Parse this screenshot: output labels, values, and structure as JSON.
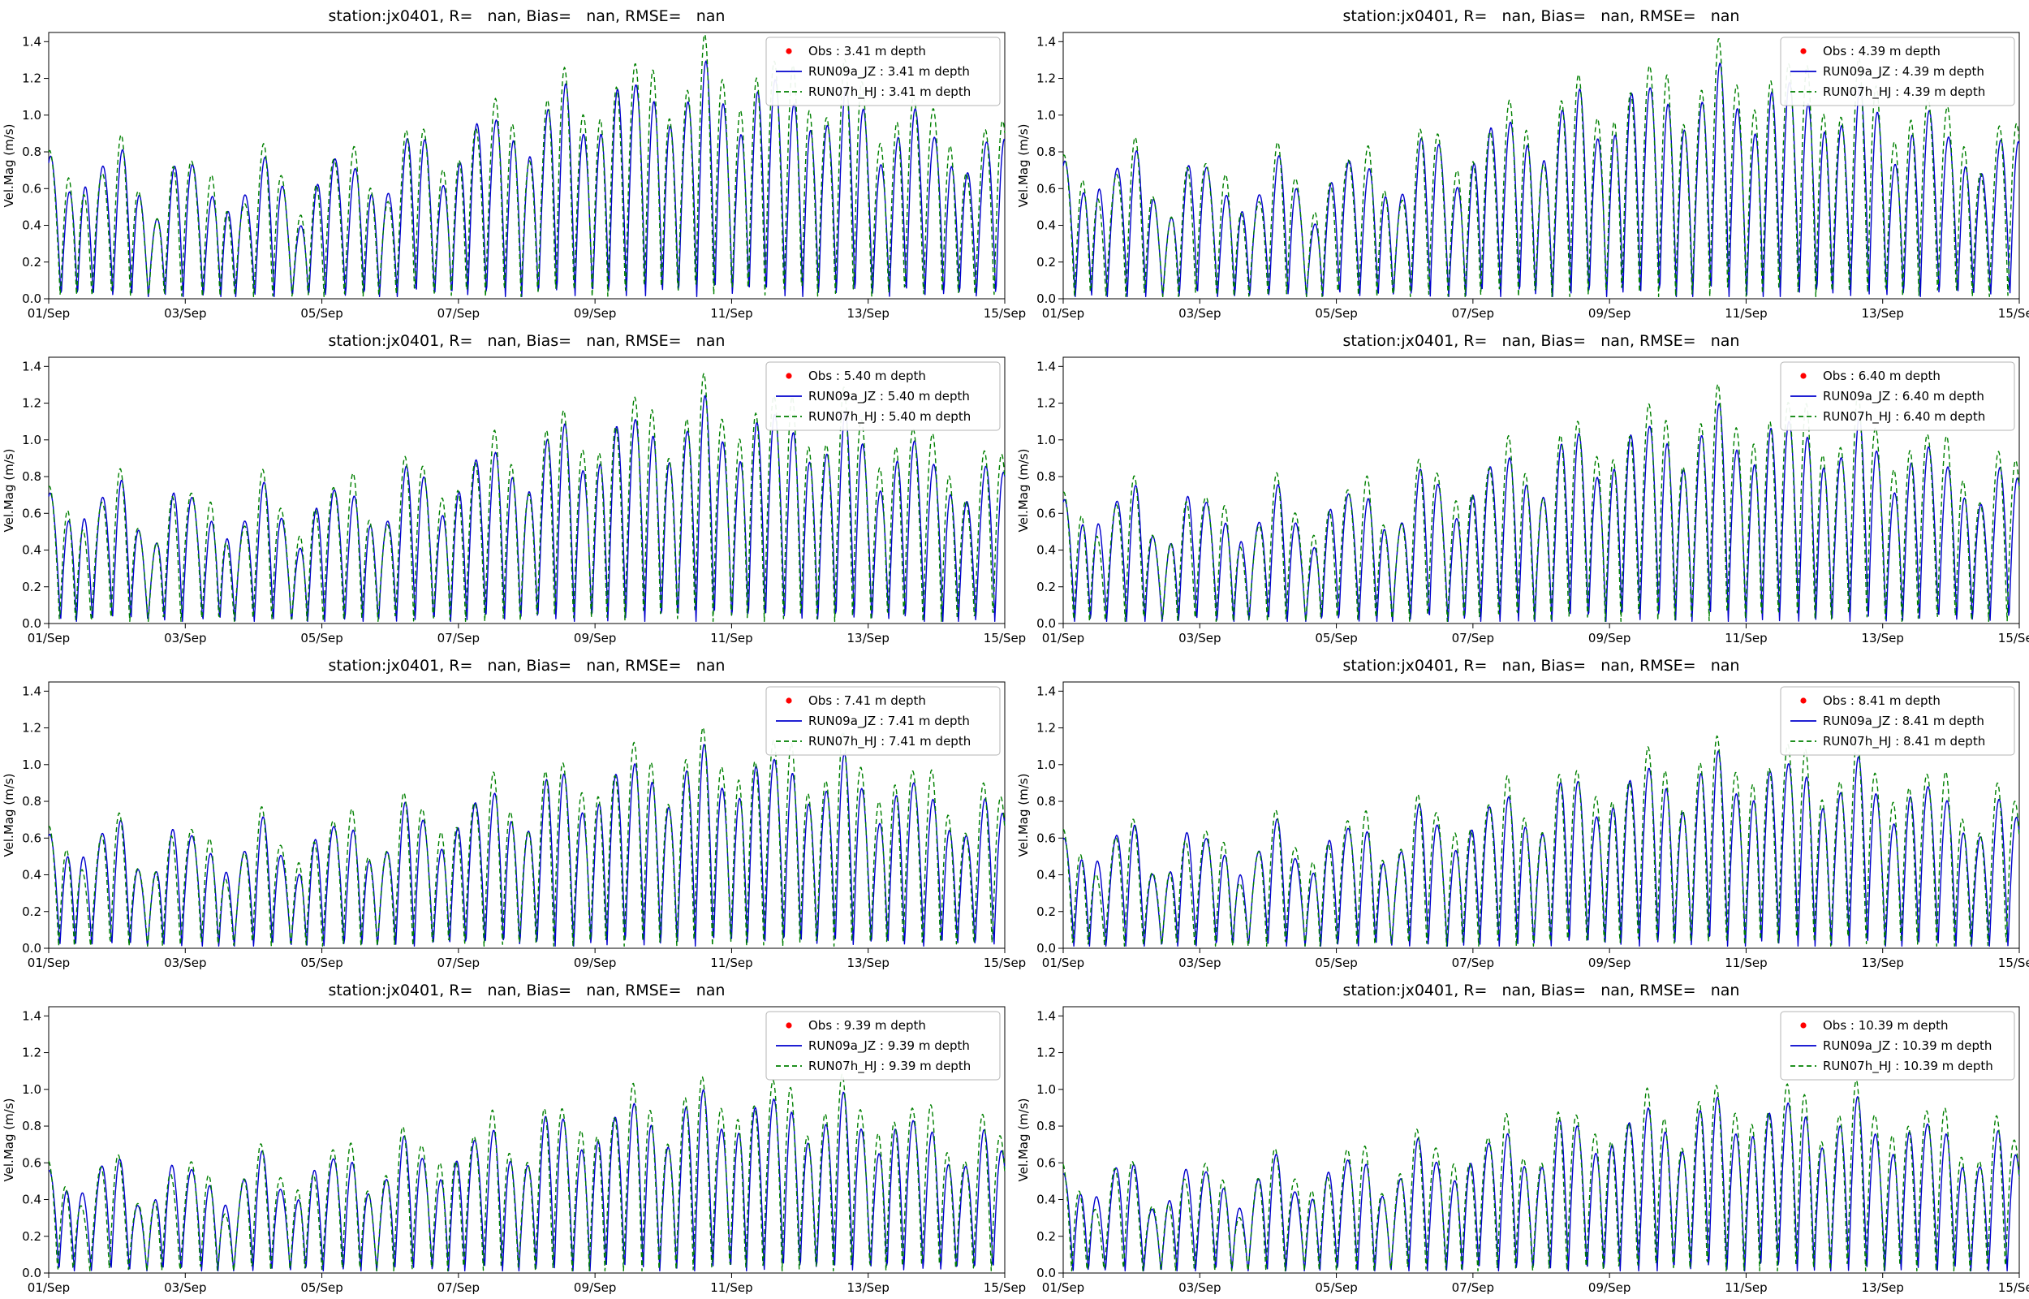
{
  "figure": {
    "background": "#ffffff",
    "rows": 4,
    "cols": 2
  },
  "colors": {
    "obs": "#ff0000",
    "run09a": "#0000cd",
    "run07h": "#008000",
    "axis": "#000000"
  },
  "chart_data": [
    {
      "type": "line",
      "title": "station:jx0401, R=   nan, Bias=   nan, RMSE=   nan",
      "ylabel": "Vel.Mag (m/s)",
      "ylim": [
        0,
        1.45
      ],
      "x_hours": [
        0,
        336
      ],
      "grid": false,
      "legend_position": "upper right",
      "yticks": [
        0.0,
        0.2,
        0.4,
        0.6,
        0.8,
        1.0,
        1.2,
        1.4
      ],
      "ytick_labels": [
        "0.0",
        "0.2",
        "0.4",
        "0.6",
        "0.8",
        "1.0",
        "1.2",
        "1.4"
      ],
      "xticks_hours": [
        0,
        48,
        96,
        144,
        192,
        240,
        288,
        336
      ],
      "xtick_labels": [
        "01/Sep",
        "03/Sep",
        "05/Sep",
        "07/Sep",
        "09/Sep",
        "11/Sep",
        "13/Sep",
        "15/Sep"
      ],
      "legend": [
        {
          "label": "Obs : 3.41 m depth",
          "marker": "dot",
          "color": "#ff0000"
        },
        {
          "label": "RUN09a_JZ : 3.41 m depth",
          "marker": "solid-line",
          "color": "#0000cd"
        },
        {
          "label": "RUN07h_HJ : 3.41 m depth",
          "marker": "dashed-line",
          "color": "#008000"
        }
      ],
      "series": [
        {
          "name": "RUN09a_JZ : 3.41 m depth",
          "color": "#0000cd",
          "style": "solid",
          "synthesis": {
            "m2": 0.8,
            "s2": 0.24,
            "k1": 0.16,
            "noise": 0.1,
            "phase": 1.0,
            "sp": 2.2,
            "kp": 0.5,
            "scale": 1.0
          }
        },
        {
          "name": "RUN07h_HJ : 3.41 m depth",
          "color": "#008000",
          "style": "dashed",
          "synthesis": {
            "m2": 0.85,
            "s2": 0.29,
            "k1": 0.18,
            "noise": 0.13,
            "phase": 1.18,
            "sp": 2.2,
            "kp": 0.9,
            "scale": 1.0
          }
        }
      ]
    },
    {
      "type": "line",
      "title": "station:jx0401, R=   nan, Bias=   nan, RMSE=   nan",
      "ylabel": "Vel.Mag (m/s)",
      "ylim": [
        0,
        1.45
      ],
      "x_hours": [
        0,
        336
      ],
      "grid": false,
      "legend_position": "upper right",
      "yticks": [
        0.0,
        0.2,
        0.4,
        0.6,
        0.8,
        1.0,
        1.2,
        1.4
      ],
      "ytick_labels": [
        "0.0",
        "0.2",
        "0.4",
        "0.6",
        "0.8",
        "1.0",
        "1.2",
        "1.4"
      ],
      "xticks_hours": [
        0,
        48,
        96,
        144,
        192,
        240,
        288,
        336
      ],
      "xtick_labels": [
        "01/Sep",
        "03/Sep",
        "05/Sep",
        "07/Sep",
        "09/Sep",
        "11/Sep",
        "13/Sep",
        "15/Sep"
      ],
      "legend": [
        {
          "label": "Obs : 4.39 m depth",
          "marker": "dot",
          "color": "#ff0000"
        },
        {
          "label": "RUN09a_JZ : 4.39 m depth",
          "marker": "solid-line",
          "color": "#0000cd"
        },
        {
          "label": "RUN07h_HJ : 4.39 m depth",
          "marker": "dashed-line",
          "color": "#008000"
        }
      ],
      "series": [
        {
          "name": "RUN09a_JZ : 4.39 m depth",
          "color": "#0000cd",
          "style": "solid",
          "synthesis": {
            "m2": 0.8,
            "s2": 0.24,
            "k1": 0.16,
            "noise": 0.1,
            "phase": 1.07,
            "sp": 2.2,
            "kp": 0.5,
            "scale": 0.99
          }
        },
        {
          "name": "RUN07h_HJ : 4.39 m depth",
          "color": "#008000",
          "style": "dashed",
          "synthesis": {
            "m2": 0.85,
            "s2": 0.29,
            "k1": 0.18,
            "noise": 0.13,
            "phase": 1.25,
            "sp": 2.2,
            "kp": 0.9,
            "scale": 0.99
          }
        }
      ]
    },
    {
      "type": "line",
      "title": "station:jx0401, R=   nan, Bias=   nan, RMSE=   nan",
      "ylabel": "Vel.Mag (m/s)",
      "ylim": [
        0,
        1.45
      ],
      "x_hours": [
        0,
        336
      ],
      "grid": false,
      "legend_position": "upper right",
      "yticks": [
        0.0,
        0.2,
        0.4,
        0.6,
        0.8,
        1.0,
        1.2,
        1.4
      ],
      "ytick_labels": [
        "0.0",
        "0.2",
        "0.4",
        "0.6",
        "0.8",
        "1.0",
        "1.2",
        "1.4"
      ],
      "xticks_hours": [
        0,
        48,
        96,
        144,
        192,
        240,
        288,
        336
      ],
      "xtick_labels": [
        "01/Sep",
        "03/Sep",
        "05/Sep",
        "07/Sep",
        "09/Sep",
        "11/Sep",
        "13/Sep",
        "15/Sep"
      ],
      "legend": [
        {
          "label": "Obs : 5.40 m depth",
          "marker": "dot",
          "color": "#ff0000"
        },
        {
          "label": "RUN09a_JZ : 5.40 m depth",
          "marker": "solid-line",
          "color": "#0000cd"
        },
        {
          "label": "RUN07h_HJ : 5.40 m depth",
          "marker": "dashed-line",
          "color": "#008000"
        }
      ],
      "series": [
        {
          "name": "RUN09a_JZ : 5.40 m depth",
          "color": "#0000cd",
          "style": "solid",
          "synthesis": {
            "m2": 0.8,
            "s2": 0.24,
            "k1": 0.16,
            "noise": 0.1,
            "phase": 1.14,
            "sp": 2.2,
            "kp": 0.5,
            "scale": 0.96
          }
        },
        {
          "name": "RUN07h_HJ : 5.40 m depth",
          "color": "#008000",
          "style": "dashed",
          "synthesis": {
            "m2": 0.85,
            "s2": 0.29,
            "k1": 0.18,
            "noise": 0.13,
            "phase": 1.32,
            "sp": 2.2,
            "kp": 0.9,
            "scale": 0.96
          }
        }
      ]
    },
    {
      "type": "line",
      "title": "station:jx0401, R=   nan, Bias=   nan, RMSE=   nan",
      "ylabel": "Vel.Mag (m/s)",
      "ylim": [
        0,
        1.45
      ],
      "x_hours": [
        0,
        336
      ],
      "grid": false,
      "legend_position": "upper right",
      "yticks": [
        0.0,
        0.2,
        0.4,
        0.6,
        0.8,
        1.0,
        1.2,
        1.4
      ],
      "ytick_labels": [
        "0.0",
        "0.2",
        "0.4",
        "0.6",
        "0.8",
        "1.0",
        "1.2",
        "1.4"
      ],
      "xticks_hours": [
        0,
        48,
        96,
        144,
        192,
        240,
        288,
        336
      ],
      "xtick_labels": [
        "01/Sep",
        "03/Sep",
        "05/Sep",
        "07/Sep",
        "09/Sep",
        "11/Sep",
        "13/Sep",
        "15/Sep"
      ],
      "legend": [
        {
          "label": "Obs : 6.40 m depth",
          "marker": "dot",
          "color": "#ff0000"
        },
        {
          "label": "RUN09a_JZ : 6.40 m depth",
          "marker": "solid-line",
          "color": "#0000cd"
        },
        {
          "label": "RUN07h_HJ : 6.40 m depth",
          "marker": "dashed-line",
          "color": "#008000"
        }
      ],
      "series": [
        {
          "name": "RUN09a_JZ : 6.40 m depth",
          "color": "#0000cd",
          "style": "solid",
          "synthesis": {
            "m2": 0.8,
            "s2": 0.24,
            "k1": 0.16,
            "noise": 0.1,
            "phase": 1.21,
            "sp": 2.2,
            "kp": 0.5,
            "scale": 0.93
          }
        },
        {
          "name": "RUN07h_HJ : 6.40 m depth",
          "color": "#008000",
          "style": "dashed",
          "synthesis": {
            "m2": 0.85,
            "s2": 0.29,
            "k1": 0.18,
            "noise": 0.13,
            "phase": 1.39,
            "sp": 2.2,
            "kp": 0.9,
            "scale": 0.93
          }
        }
      ]
    },
    {
      "type": "line",
      "title": "station:jx0401, R=   nan, Bias=   nan, RMSE=   nan",
      "ylabel": "Vel.Mag (m/s)",
      "ylim": [
        0,
        1.45
      ],
      "x_hours": [
        0,
        336
      ],
      "grid": false,
      "legend_position": "upper right",
      "yticks": [
        0.0,
        0.2,
        0.4,
        0.6,
        0.8,
        1.0,
        1.2,
        1.4
      ],
      "ytick_labels": [
        "0.0",
        "0.2",
        "0.4",
        "0.6",
        "0.8",
        "1.0",
        "1.2",
        "1.4"
      ],
      "xticks_hours": [
        0,
        48,
        96,
        144,
        192,
        240,
        288,
        336
      ],
      "xtick_labels": [
        "01/Sep",
        "03/Sep",
        "05/Sep",
        "07/Sep",
        "09/Sep",
        "11/Sep",
        "13/Sep",
        "15/Sep"
      ],
      "legend": [
        {
          "label": "Obs : 7.41 m depth",
          "marker": "dot",
          "color": "#ff0000"
        },
        {
          "label": "RUN09a_JZ : 7.41 m depth",
          "marker": "solid-line",
          "color": "#0000cd"
        },
        {
          "label": "RUN07h_HJ : 7.41 m depth",
          "marker": "dashed-line",
          "color": "#008000"
        }
      ],
      "series": [
        {
          "name": "RUN09a_JZ : 7.41 m depth",
          "color": "#0000cd",
          "style": "solid",
          "synthesis": {
            "m2": 0.8,
            "s2": 0.24,
            "k1": 0.16,
            "noise": 0.1,
            "phase": 1.28,
            "sp": 2.2,
            "kp": 0.5,
            "scale": 0.87
          }
        },
        {
          "name": "RUN07h_HJ : 7.41 m depth",
          "color": "#008000",
          "style": "dashed",
          "synthesis": {
            "m2": 0.85,
            "s2": 0.29,
            "k1": 0.18,
            "noise": 0.13,
            "phase": 1.46,
            "sp": 2.2,
            "kp": 0.9,
            "scale": 0.87
          }
        }
      ]
    },
    {
      "type": "line",
      "title": "station:jx0401, R=   nan, Bias=   nan, RMSE=   nan",
      "ylabel": "Vel.Mag (m/s)",
      "ylim": [
        0,
        1.45
      ],
      "x_hours": [
        0,
        336
      ],
      "grid": false,
      "legend_position": "upper right",
      "yticks": [
        0.0,
        0.2,
        0.4,
        0.6,
        0.8,
        1.0,
        1.2,
        1.4
      ],
      "ytick_labels": [
        "0.0",
        "0.2",
        "0.4",
        "0.6",
        "0.8",
        "1.0",
        "1.2",
        "1.4"
      ],
      "xticks_hours": [
        0,
        48,
        96,
        144,
        192,
        240,
        288,
        336
      ],
      "xtick_labels": [
        "01/Sep",
        "03/Sep",
        "05/Sep",
        "07/Sep",
        "09/Sep",
        "11/Sep",
        "13/Sep",
        "15/Sep"
      ],
      "legend": [
        {
          "label": "Obs : 8.41 m depth",
          "marker": "dot",
          "color": "#ff0000"
        },
        {
          "label": "RUN09a_JZ : 8.41 m depth",
          "marker": "solid-line",
          "color": "#0000cd"
        },
        {
          "label": "RUN07h_HJ : 8.41 m depth",
          "marker": "dashed-line",
          "color": "#008000"
        }
      ],
      "series": [
        {
          "name": "RUN09a_JZ : 8.41 m depth",
          "color": "#0000cd",
          "style": "solid",
          "synthesis": {
            "m2": 0.8,
            "s2": 0.24,
            "k1": 0.16,
            "noise": 0.1,
            "phase": 1.35,
            "sp": 2.2,
            "kp": 0.5,
            "scale": 0.85
          }
        },
        {
          "name": "RUN07h_HJ : 8.41 m depth",
          "color": "#008000",
          "style": "dashed",
          "synthesis": {
            "m2": 0.85,
            "s2": 0.29,
            "k1": 0.18,
            "noise": 0.13,
            "phase": 1.53,
            "sp": 2.2,
            "kp": 0.9,
            "scale": 0.85
          }
        }
      ]
    },
    {
      "type": "line",
      "title": "station:jx0401, R=   nan, Bias=   nan, RMSE=   nan",
      "ylabel": "Vel.Mag (m/s)",
      "ylim": [
        0,
        1.45
      ],
      "x_hours": [
        0,
        336
      ],
      "grid": false,
      "legend_position": "upper right",
      "yticks": [
        0.0,
        0.2,
        0.4,
        0.6,
        0.8,
        1.0,
        1.2,
        1.4
      ],
      "ytick_labels": [
        "0.0",
        "0.2",
        "0.4",
        "0.6",
        "0.8",
        "1.0",
        "1.2",
        "1.4"
      ],
      "xticks_hours": [
        0,
        48,
        96,
        144,
        192,
        240,
        288,
        336
      ],
      "xtick_labels": [
        "01/Sep",
        "03/Sep",
        "05/Sep",
        "07/Sep",
        "09/Sep",
        "11/Sep",
        "13/Sep",
        "15/Sep"
      ],
      "legend": [
        {
          "label": "Obs : 9.39 m depth",
          "marker": "dot",
          "color": "#ff0000"
        },
        {
          "label": "RUN09a_JZ : 9.39 m depth",
          "marker": "solid-line",
          "color": "#0000cd"
        },
        {
          "label": "RUN07h_HJ : 9.39 m depth",
          "marker": "dashed-line",
          "color": "#008000"
        }
      ],
      "series": [
        {
          "name": "RUN09a_JZ : 9.39 m depth",
          "color": "#0000cd",
          "style": "solid",
          "synthesis": {
            "m2": 0.8,
            "s2": 0.24,
            "k1": 0.16,
            "noise": 0.1,
            "phase": 1.42,
            "sp": 2.2,
            "kp": 0.5,
            "scale": 0.8
          }
        },
        {
          "name": "RUN07h_HJ : 9.39 m depth",
          "color": "#008000",
          "style": "dashed",
          "synthesis": {
            "m2": 0.85,
            "s2": 0.29,
            "k1": 0.18,
            "noise": 0.13,
            "phase": 1.6,
            "sp": 2.2,
            "kp": 0.9,
            "scale": 0.8
          }
        }
      ]
    },
    {
      "type": "line",
      "title": "station:jx0401, R=   nan, Bias=   nan, RMSE=   nan",
      "ylabel": "Vel.Mag (m/s)",
      "ylim": [
        0,
        1.45
      ],
      "x_hours": [
        0,
        336
      ],
      "grid": false,
      "legend_position": "upper right",
      "yticks": [
        0.0,
        0.2,
        0.4,
        0.6,
        0.8,
        1.0,
        1.2,
        1.4
      ],
      "ytick_labels": [
        "0.0",
        "0.2",
        "0.4",
        "0.6",
        "0.8",
        "1.0",
        "1.2",
        "1.4"
      ],
      "xticks_hours": [
        0,
        48,
        96,
        144,
        192,
        240,
        288,
        336
      ],
      "xtick_labels": [
        "01/Sep",
        "03/Sep",
        "05/Sep",
        "07/Sep",
        "09/Sep",
        "11/Sep",
        "13/Sep",
        "15/Sep"
      ],
      "legend": [
        {
          "label": "Obs : 10.39 m depth",
          "marker": "dot",
          "color": "#ff0000"
        },
        {
          "label": "RUN09a_JZ : 10.39 m depth",
          "marker": "solid-line",
          "color": "#0000cd"
        },
        {
          "label": "RUN07h_HJ : 10.39 m depth",
          "marker": "dashed-line",
          "color": "#008000"
        }
      ],
      "series": [
        {
          "name": "RUN09a_JZ : 10.39 m depth",
          "color": "#0000cd",
          "style": "solid",
          "synthesis": {
            "m2": 0.8,
            "s2": 0.24,
            "k1": 0.16,
            "noise": 0.1,
            "phase": 1.49,
            "sp": 2.2,
            "kp": 0.5,
            "scale": 0.78
          }
        },
        {
          "name": "RUN07h_HJ : 10.39 m depth",
          "color": "#008000",
          "style": "dashed",
          "synthesis": {
            "m2": 0.85,
            "s2": 0.29,
            "k1": 0.18,
            "noise": 0.13,
            "phase": 1.67,
            "sp": 2.2,
            "kp": 0.9,
            "scale": 0.78
          }
        }
      ]
    }
  ]
}
